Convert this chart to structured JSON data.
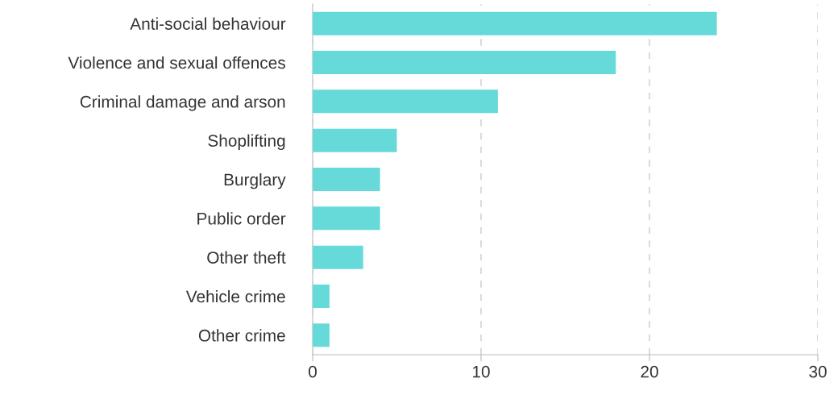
{
  "chart_data": {
    "type": "bar",
    "orientation": "horizontal",
    "categories": [
      "Anti-social behaviour",
      "Violence and sexual offences",
      "Criminal damage and arson",
      "Shoplifting",
      "Burglary",
      "Public order",
      "Other theft",
      "Vehicle crime",
      "Other crime"
    ],
    "values": [
      24,
      18,
      11,
      5,
      4,
      4,
      3,
      1,
      1
    ],
    "color": "#66d9d9",
    "xlim": [
      0,
      30
    ],
    "xticks": [
      0,
      10,
      20,
      30
    ],
    "grid": "x",
    "legend": false
  }
}
